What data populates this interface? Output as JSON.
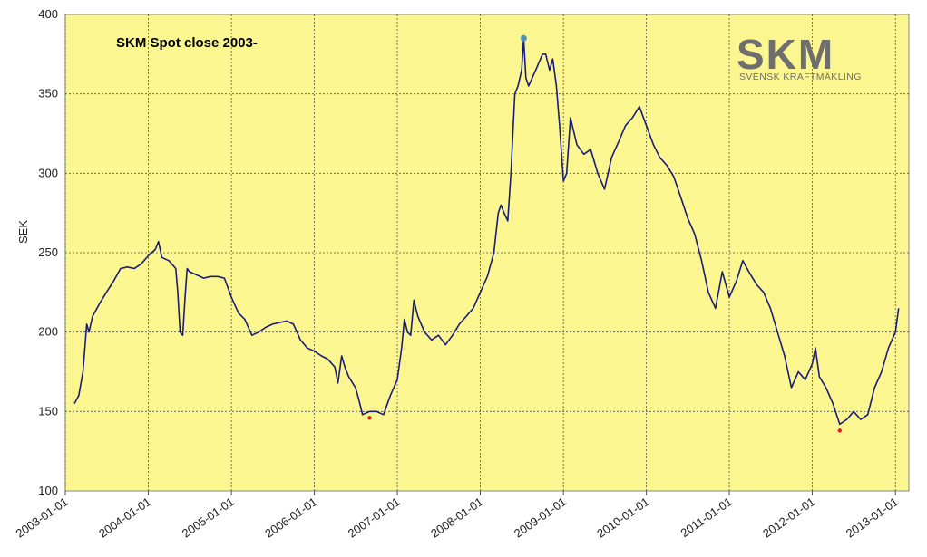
{
  "logo": {
    "name": "SKM",
    "tagline": "SVENSK KRAFTMÄKLING"
  },
  "chart_data": {
    "type": "line",
    "title": "SKM Spot close  2003-",
    "xlabel": "",
    "ylabel": "SEK",
    "ylim": [
      100,
      400
    ],
    "yticks": [
      100,
      150,
      200,
      250,
      300,
      350,
      400
    ],
    "xlim": [
      "2003-01-01",
      "2013-03-01"
    ],
    "xticks": [
      "2003-01-01",
      "2004-01-01",
      "2005-01-01",
      "2006-01-01",
      "2007-01-01",
      "2008-01-01",
      "2009-01-01",
      "2010-01-01",
      "2011-01-01",
      "2012-01-01",
      "2013-01-01"
    ],
    "grid": true,
    "colors": {
      "background": "#fbf68f",
      "line": "#1a1d7a",
      "max_marker": "#4f8fc0",
      "min_marker": "#e02020",
      "grid": "#555555"
    },
    "series": [
      {
        "values": [
          [
            "2003-02-10",
            155
          ],
          [
            "2003-03-01",
            160
          ],
          [
            "2003-03-20",
            175
          ],
          [
            "2003-04-05",
            205
          ],
          [
            "2003-04-15",
            200
          ],
          [
            "2003-05-01",
            210
          ],
          [
            "2003-06-01",
            218
          ],
          [
            "2003-07-01",
            225
          ],
          [
            "2003-08-01",
            232
          ],
          [
            "2003-09-01",
            240
          ],
          [
            "2003-10-01",
            241
          ],
          [
            "2003-11-01",
            240
          ],
          [
            "2003-12-01",
            243
          ],
          [
            "2004-01-01",
            248
          ],
          [
            "2004-02-01",
            252
          ],
          [
            "2004-02-15",
            257
          ],
          [
            "2004-03-01",
            247
          ],
          [
            "2004-04-01",
            245
          ],
          [
            "2004-05-01",
            240
          ],
          [
            "2004-05-10",
            225
          ],
          [
            "2004-05-20",
            200
          ],
          [
            "2004-06-01",
            198
          ],
          [
            "2004-06-10",
            220
          ],
          [
            "2004-06-20",
            240
          ],
          [
            "2004-07-01",
            238
          ],
          [
            "2004-08-01",
            236
          ],
          [
            "2004-09-01",
            234
          ],
          [
            "2004-10-01",
            235
          ],
          [
            "2004-11-01",
            235
          ],
          [
            "2004-12-01",
            234
          ],
          [
            "2005-01-01",
            222
          ],
          [
            "2005-02-01",
            212
          ],
          [
            "2005-03-01",
            208
          ],
          [
            "2005-04-01",
            198
          ],
          [
            "2005-05-01",
            200
          ],
          [
            "2005-06-01",
            203
          ],
          [
            "2005-07-01",
            205
          ],
          [
            "2005-08-01",
            206
          ],
          [
            "2005-09-01",
            207
          ],
          [
            "2005-10-01",
            205
          ],
          [
            "2005-11-01",
            195
          ],
          [
            "2005-12-01",
            190
          ],
          [
            "2006-01-01",
            188
          ],
          [
            "2006-02-01",
            185
          ],
          [
            "2006-03-01",
            183
          ],
          [
            "2006-04-01",
            178
          ],
          [
            "2006-04-15",
            168
          ],
          [
            "2006-05-01",
            185
          ],
          [
            "2006-05-15",
            178
          ],
          [
            "2006-06-01",
            172
          ],
          [
            "2006-07-01",
            165
          ],
          [
            "2006-07-15",
            158
          ],
          [
            "2006-08-01",
            148
          ],
          [
            "2006-09-01",
            150
          ],
          [
            "2006-10-01",
            150
          ],
          [
            "2006-11-01",
            148
          ],
          [
            "2006-12-01",
            160
          ],
          [
            "2007-01-01",
            170
          ],
          [
            "2007-01-20",
            190
          ],
          [
            "2007-02-01",
            208
          ],
          [
            "2007-02-15",
            200
          ],
          [
            "2007-03-01",
            198
          ],
          [
            "2007-03-15",
            220
          ],
          [
            "2007-04-01",
            210
          ],
          [
            "2007-05-01",
            200
          ],
          [
            "2007-06-01",
            195
          ],
          [
            "2007-07-01",
            198
          ],
          [
            "2007-08-01",
            192
          ],
          [
            "2007-09-01",
            198
          ],
          [
            "2007-10-01",
            205
          ],
          [
            "2007-11-01",
            210
          ],
          [
            "2007-12-01",
            215
          ],
          [
            "2008-01-01",
            225
          ],
          [
            "2008-02-01",
            235
          ],
          [
            "2008-03-01",
            250
          ],
          [
            "2008-03-20",
            275
          ],
          [
            "2008-04-01",
            280
          ],
          [
            "2008-04-15",
            275
          ],
          [
            "2008-05-01",
            270
          ],
          [
            "2008-05-15",
            300
          ],
          [
            "2008-06-01",
            350
          ],
          [
            "2008-06-15",
            355
          ],
          [
            "2008-07-01",
            365
          ],
          [
            "2008-07-10",
            385
          ],
          [
            "2008-07-20",
            360
          ],
          [
            "2008-08-01",
            355
          ],
          [
            "2008-09-01",
            365
          ],
          [
            "2008-10-01",
            375
          ],
          [
            "2008-10-15",
            375
          ],
          [
            "2008-11-01",
            365
          ],
          [
            "2008-11-15",
            372
          ],
          [
            "2008-12-01",
            355
          ],
          [
            "2008-12-15",
            330
          ],
          [
            "2009-01-01",
            295
          ],
          [
            "2009-01-15",
            300
          ],
          [
            "2009-02-01",
            335
          ],
          [
            "2009-03-01",
            318
          ],
          [
            "2009-04-01",
            312
          ],
          [
            "2009-05-01",
            315
          ],
          [
            "2009-06-01",
            300
          ],
          [
            "2009-07-01",
            290
          ],
          [
            "2009-08-01",
            310
          ],
          [
            "2009-09-01",
            320
          ],
          [
            "2009-10-01",
            330
          ],
          [
            "2009-11-01",
            335
          ],
          [
            "2009-12-01",
            342
          ],
          [
            "2010-01-01",
            330
          ],
          [
            "2010-02-01",
            318
          ],
          [
            "2010-03-01",
            310
          ],
          [
            "2010-04-01",
            305
          ],
          [
            "2010-05-01",
            298
          ],
          [
            "2010-06-01",
            285
          ],
          [
            "2010-07-01",
            272
          ],
          [
            "2010-08-01",
            262
          ],
          [
            "2010-09-01",
            245
          ],
          [
            "2010-10-01",
            225
          ],
          [
            "2010-11-01",
            215
          ],
          [
            "2010-12-01",
            238
          ],
          [
            "2011-01-01",
            222
          ],
          [
            "2011-02-01",
            232
          ],
          [
            "2011-03-01",
            245
          ],
          [
            "2011-04-01",
            237
          ],
          [
            "2011-05-01",
            230
          ],
          [
            "2011-06-01",
            225
          ],
          [
            "2011-07-01",
            215
          ],
          [
            "2011-08-01",
            200
          ],
          [
            "2011-09-01",
            185
          ],
          [
            "2011-10-01",
            165
          ],
          [
            "2011-11-01",
            175
          ],
          [
            "2011-12-01",
            170
          ],
          [
            "2012-01-01",
            180
          ],
          [
            "2012-01-15",
            190
          ],
          [
            "2012-02-01",
            172
          ],
          [
            "2012-03-01",
            165
          ],
          [
            "2012-04-01",
            155
          ],
          [
            "2012-05-01",
            142
          ],
          [
            "2012-06-01",
            145
          ],
          [
            "2012-07-01",
            150
          ],
          [
            "2012-08-01",
            145
          ],
          [
            "2012-09-01",
            148
          ],
          [
            "2012-10-01",
            165
          ],
          [
            "2012-11-01",
            175
          ],
          [
            "2012-12-01",
            190
          ],
          [
            "2013-01-01",
            200
          ],
          [
            "2013-01-15",
            215
          ]
        ]
      }
    ],
    "max_point": [
      "2008-07-10",
      385
    ],
    "min_points": [
      [
        "2006-09-01",
        146
      ],
      [
        "2012-05-01",
        138
      ]
    ]
  }
}
